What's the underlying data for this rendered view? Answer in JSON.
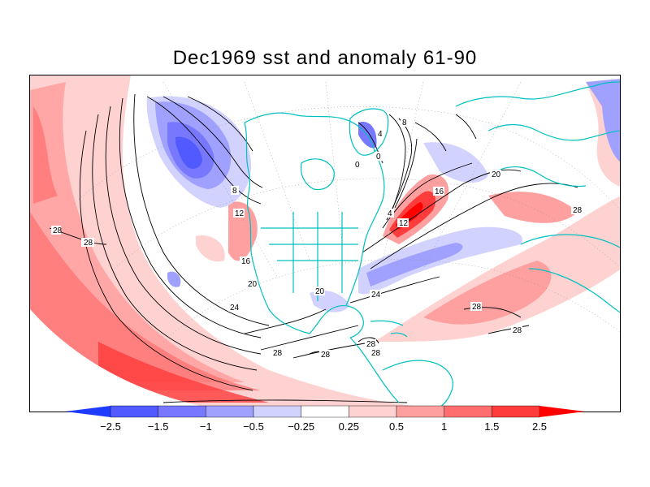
{
  "title": "Dec1969 sst and anomaly 61-90",
  "map": {
    "projection": "polar-stereographic north",
    "region": "North Atlantic / North Pacific",
    "coastline_color": "#00c0c0",
    "contour_color": "#000000",
    "contour_labels": [
      "28",
      "28",
      "8",
      "12",
      "16",
      "20",
      "24",
      "28",
      "28",
      "28",
      "20",
      "24",
      "4",
      "0",
      "8",
      "12",
      "16",
      "20",
      "28",
      "28",
      "28",
      "28",
      "4",
      "0"
    ]
  },
  "colorbar": {
    "labels": [
      "-2.5",
      "-1.5",
      "-1",
      "-0.5",
      "-0.25",
      "0.25",
      "0.5",
      "1",
      "1.5",
      "2.5"
    ],
    "colors": [
      "#1e3cff",
      "#505aff",
      "#7878ff",
      "#a0a0ff",
      "#d2d2ff",
      "#ffffff",
      "#ffd2d2",
      "#ffa0a0",
      "#ff6e6e",
      "#ff3c3c",
      "#ff0000"
    ]
  }
}
